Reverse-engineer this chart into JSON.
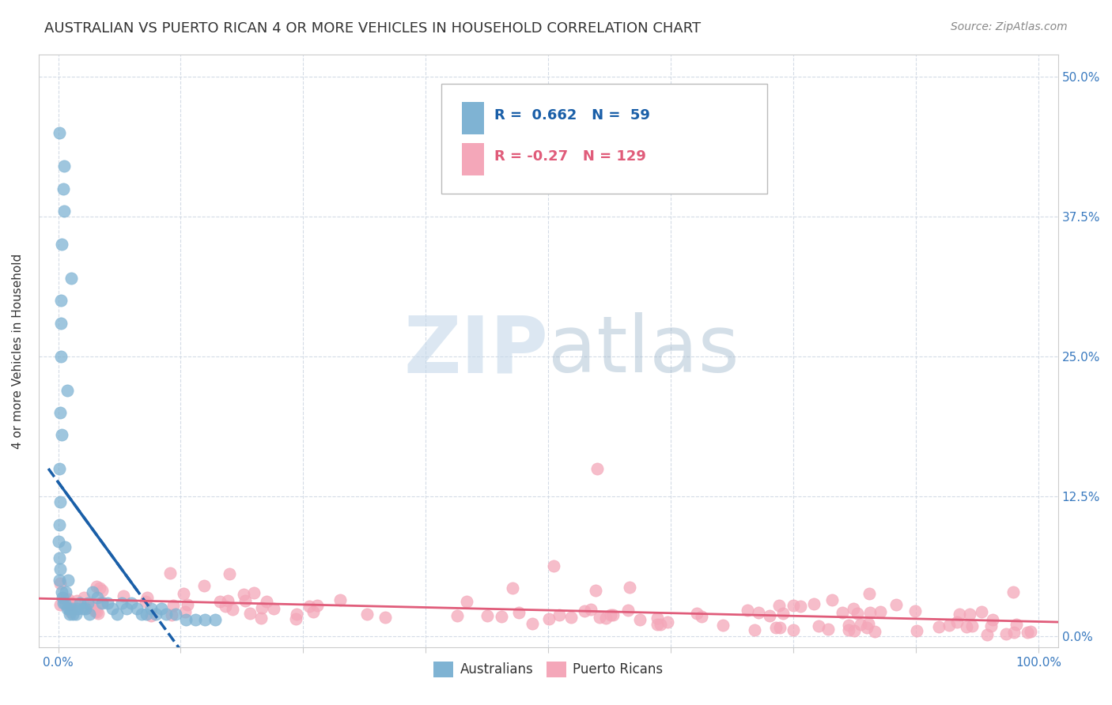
{
  "title": "AUSTRALIAN VS PUERTO RICAN 4 OR MORE VEHICLES IN HOUSEHOLD CORRELATION CHART",
  "source": "Source: ZipAtlas.com",
  "ylabel": "4 or more Vehicles in Household",
  "xlim": [
    -2,
    102
  ],
  "ylim": [
    -1,
    52
  ],
  "blue_R": 0.662,
  "blue_N": 59,
  "pink_R": -0.27,
  "pink_N": 129,
  "blue_color": "#7fb3d3",
  "pink_color": "#f4a7b9",
  "blue_line_color": "#1a5fa8",
  "pink_line_color": "#e05c7a",
  "watermark_zip": "ZIP",
  "watermark_atlas": "atlas",
  "background_color": "#ffffff",
  "grid_color": "#d0d8e4",
  "title_fontsize": 13,
  "axis_label_fontsize": 11,
  "tick_fontsize": 11
}
